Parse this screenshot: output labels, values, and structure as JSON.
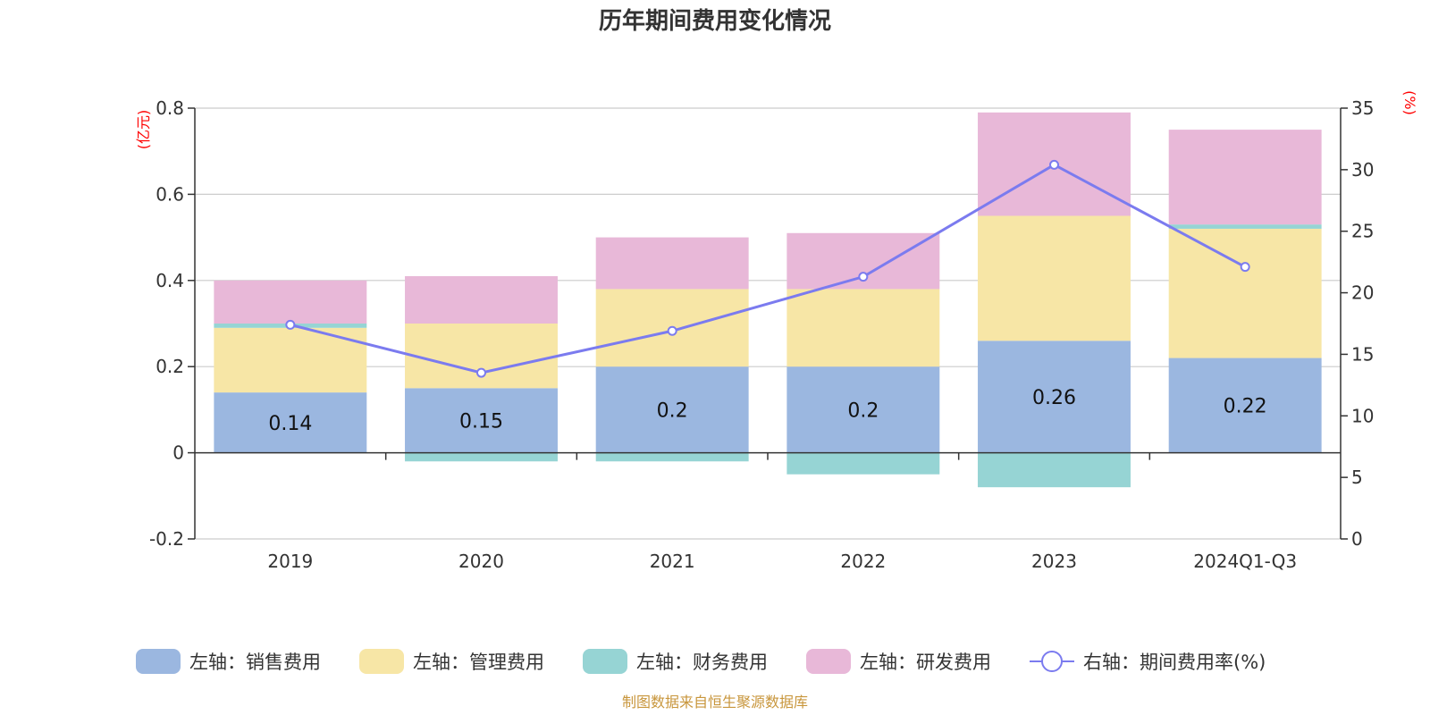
{
  "chart_data": {
    "type": "bar",
    "stacked": true,
    "title": "历年期间费用变化情况",
    "categories": [
      "2019",
      "2020",
      "2021",
      "2022",
      "2023",
      "2024Q1-Q3"
    ],
    "left_axis": {
      "unit": "(亿元)",
      "ylim": [
        -0.2,
        0.8
      ],
      "ticks": [
        -0.2,
        0,
        0.2,
        0.4,
        0.6,
        0.8
      ],
      "tick_labels": [
        "-0.2",
        "0",
        "0.2",
        "0.4",
        "0.6",
        "0.8"
      ]
    },
    "right_axis": {
      "unit": "(%)",
      "ylim": [
        0,
        35
      ],
      "ticks": [
        0,
        5,
        10,
        15,
        20,
        25,
        30,
        35
      ],
      "tick_labels": [
        "0",
        "5",
        "10",
        "15",
        "20",
        "25",
        "30",
        "35"
      ]
    },
    "series": [
      {
        "name": "左轴：销售费用",
        "axis": "left",
        "type": "bar",
        "color": "#9bb7e0",
        "values": [
          0.14,
          0.15,
          0.2,
          0.2,
          0.26,
          0.22
        ],
        "labels": [
          "0.14",
          "0.15",
          "0.2",
          "0.2",
          "0.26",
          "0.22"
        ]
      },
      {
        "name": "左轴：管理费用",
        "axis": "left",
        "type": "bar",
        "color": "#f7e6a6",
        "values": [
          0.15,
          0.15,
          0.18,
          0.18,
          0.29,
          0.3
        ]
      },
      {
        "name": "左轴：财务费用",
        "axis": "left",
        "type": "bar",
        "color": "#96d4d4",
        "values": [
          0.01,
          -0.02,
          -0.02,
          -0.05,
          -0.08,
          0.01
        ]
      },
      {
        "name": "左轴：研发费用",
        "axis": "left",
        "type": "bar",
        "color": "#e8b8d8",
        "values": [
          0.1,
          0.11,
          0.12,
          0.13,
          0.24,
          0.22
        ]
      },
      {
        "name": "右轴：期间费用率(%)",
        "axis": "right",
        "type": "line",
        "color": "#7b7bef",
        "values": [
          17.4,
          13.5,
          16.9,
          21.3,
          30.4,
          22.1
        ]
      }
    ],
    "source": "制图数据来自恒生聚源数据库"
  }
}
